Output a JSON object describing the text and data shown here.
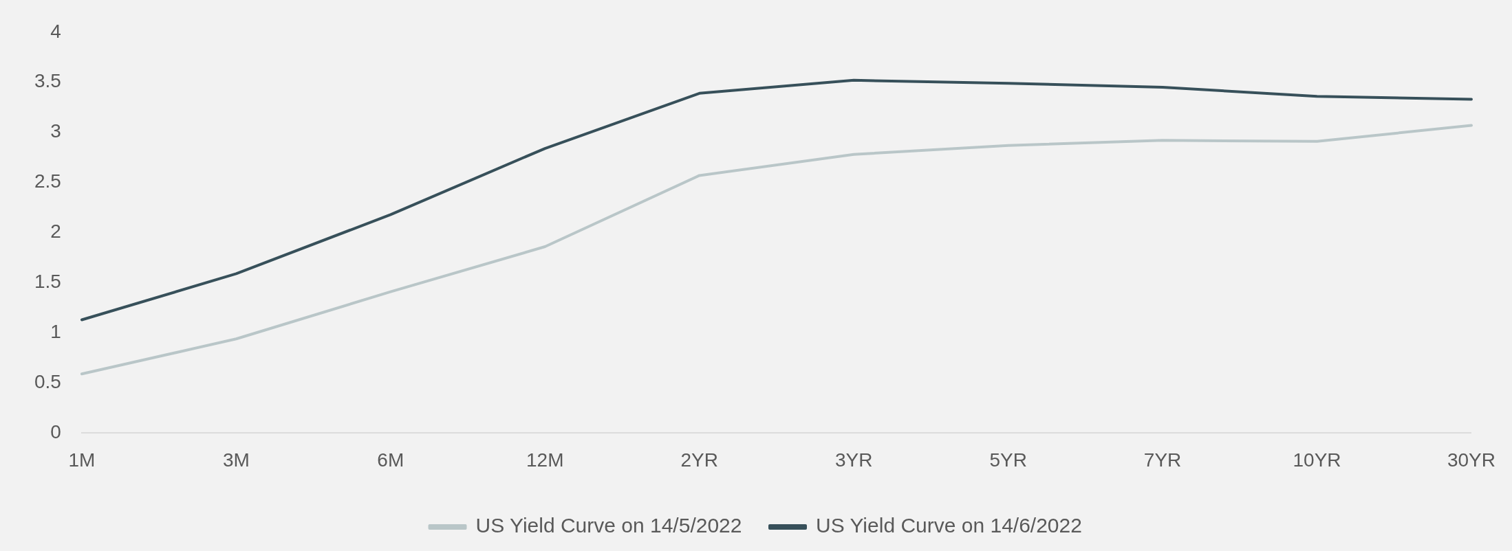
{
  "chart_data": {
    "type": "line",
    "categories": [
      "1M",
      "3M",
      "6M",
      "12M",
      "2YR",
      "3YR",
      "5YR",
      "7YR",
      "10YR",
      "30YR"
    ],
    "series": [
      {
        "name": "US Yield Curve on 14/5/2022",
        "color": "#b9c6c8",
        "values": [
          0.59,
          0.94,
          1.41,
          1.86,
          2.57,
          2.78,
          2.87,
          2.92,
          2.91,
          3.07
        ]
      },
      {
        "name": "US Yield Curve on 14/6/2022",
        "color": "#37505a",
        "values": [
          1.13,
          1.59,
          2.18,
          2.84,
          3.39,
          3.52,
          3.49,
          3.45,
          3.36,
          3.33
        ]
      }
    ],
    "ylim": [
      0,
      4
    ],
    "yticks": [
      0,
      0.5,
      1,
      1.5,
      2,
      2.5,
      3,
      3.5,
      4
    ],
    "grid": false,
    "legend": "bottom",
    "marker": "none",
    "line_style": "solid"
  }
}
